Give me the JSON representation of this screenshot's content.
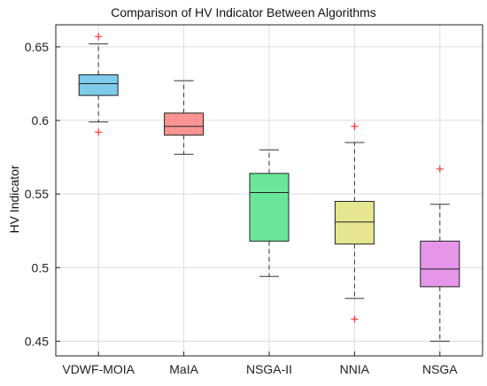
{
  "chart_data": {
    "type": "boxplot",
    "title": "Comparison of HV Indicator Between Algorithms",
    "xlabel": "",
    "ylabel": "HV Indicator",
    "ylim": [
      0.44,
      0.665
    ],
    "yticks": [
      0.45,
      0.5,
      0.55,
      0.6,
      0.65
    ],
    "ytick_labels": [
      "0.45",
      "0.5",
      "0.55",
      "0.6",
      "0.65"
    ],
    "grid": true,
    "categories": [
      "VDWF-MOIA",
      "MaIA",
      "NSGA-II",
      "NNIA",
      "NSGA"
    ],
    "boxes": [
      {
        "name": "VDWF-MOIA",
        "color": "#7ecbeb",
        "whisker_low": 0.599,
        "q1": 0.617,
        "median": 0.625,
        "q3": 0.631,
        "whisker_high": 0.652,
        "outliers": [
          0.657,
          0.592
        ]
      },
      {
        "name": "MaIA",
        "color": "#fb9492",
        "whisker_low": 0.577,
        "q1": 0.59,
        "median": 0.596,
        "q3": 0.605,
        "whisker_high": 0.627,
        "outliers": []
      },
      {
        "name": "NSGA-II",
        "color": "#6ae69a",
        "whisker_low": 0.494,
        "q1": 0.518,
        "median": 0.551,
        "q3": 0.564,
        "whisker_high": 0.58,
        "outliers": []
      },
      {
        "name": "NNIA",
        "color": "#e5e68f",
        "whisker_low": 0.479,
        "q1": 0.516,
        "median": 0.531,
        "q3": 0.545,
        "whisker_high": 0.585,
        "outliers": [
          0.596,
          0.465
        ]
      },
      {
        "name": "NSGA",
        "color": "#e596e8",
        "whisker_low": 0.45,
        "q1": 0.487,
        "median": 0.499,
        "q3": 0.518,
        "whisker_high": 0.543,
        "outliers": [
          0.567
        ]
      }
    ]
  }
}
